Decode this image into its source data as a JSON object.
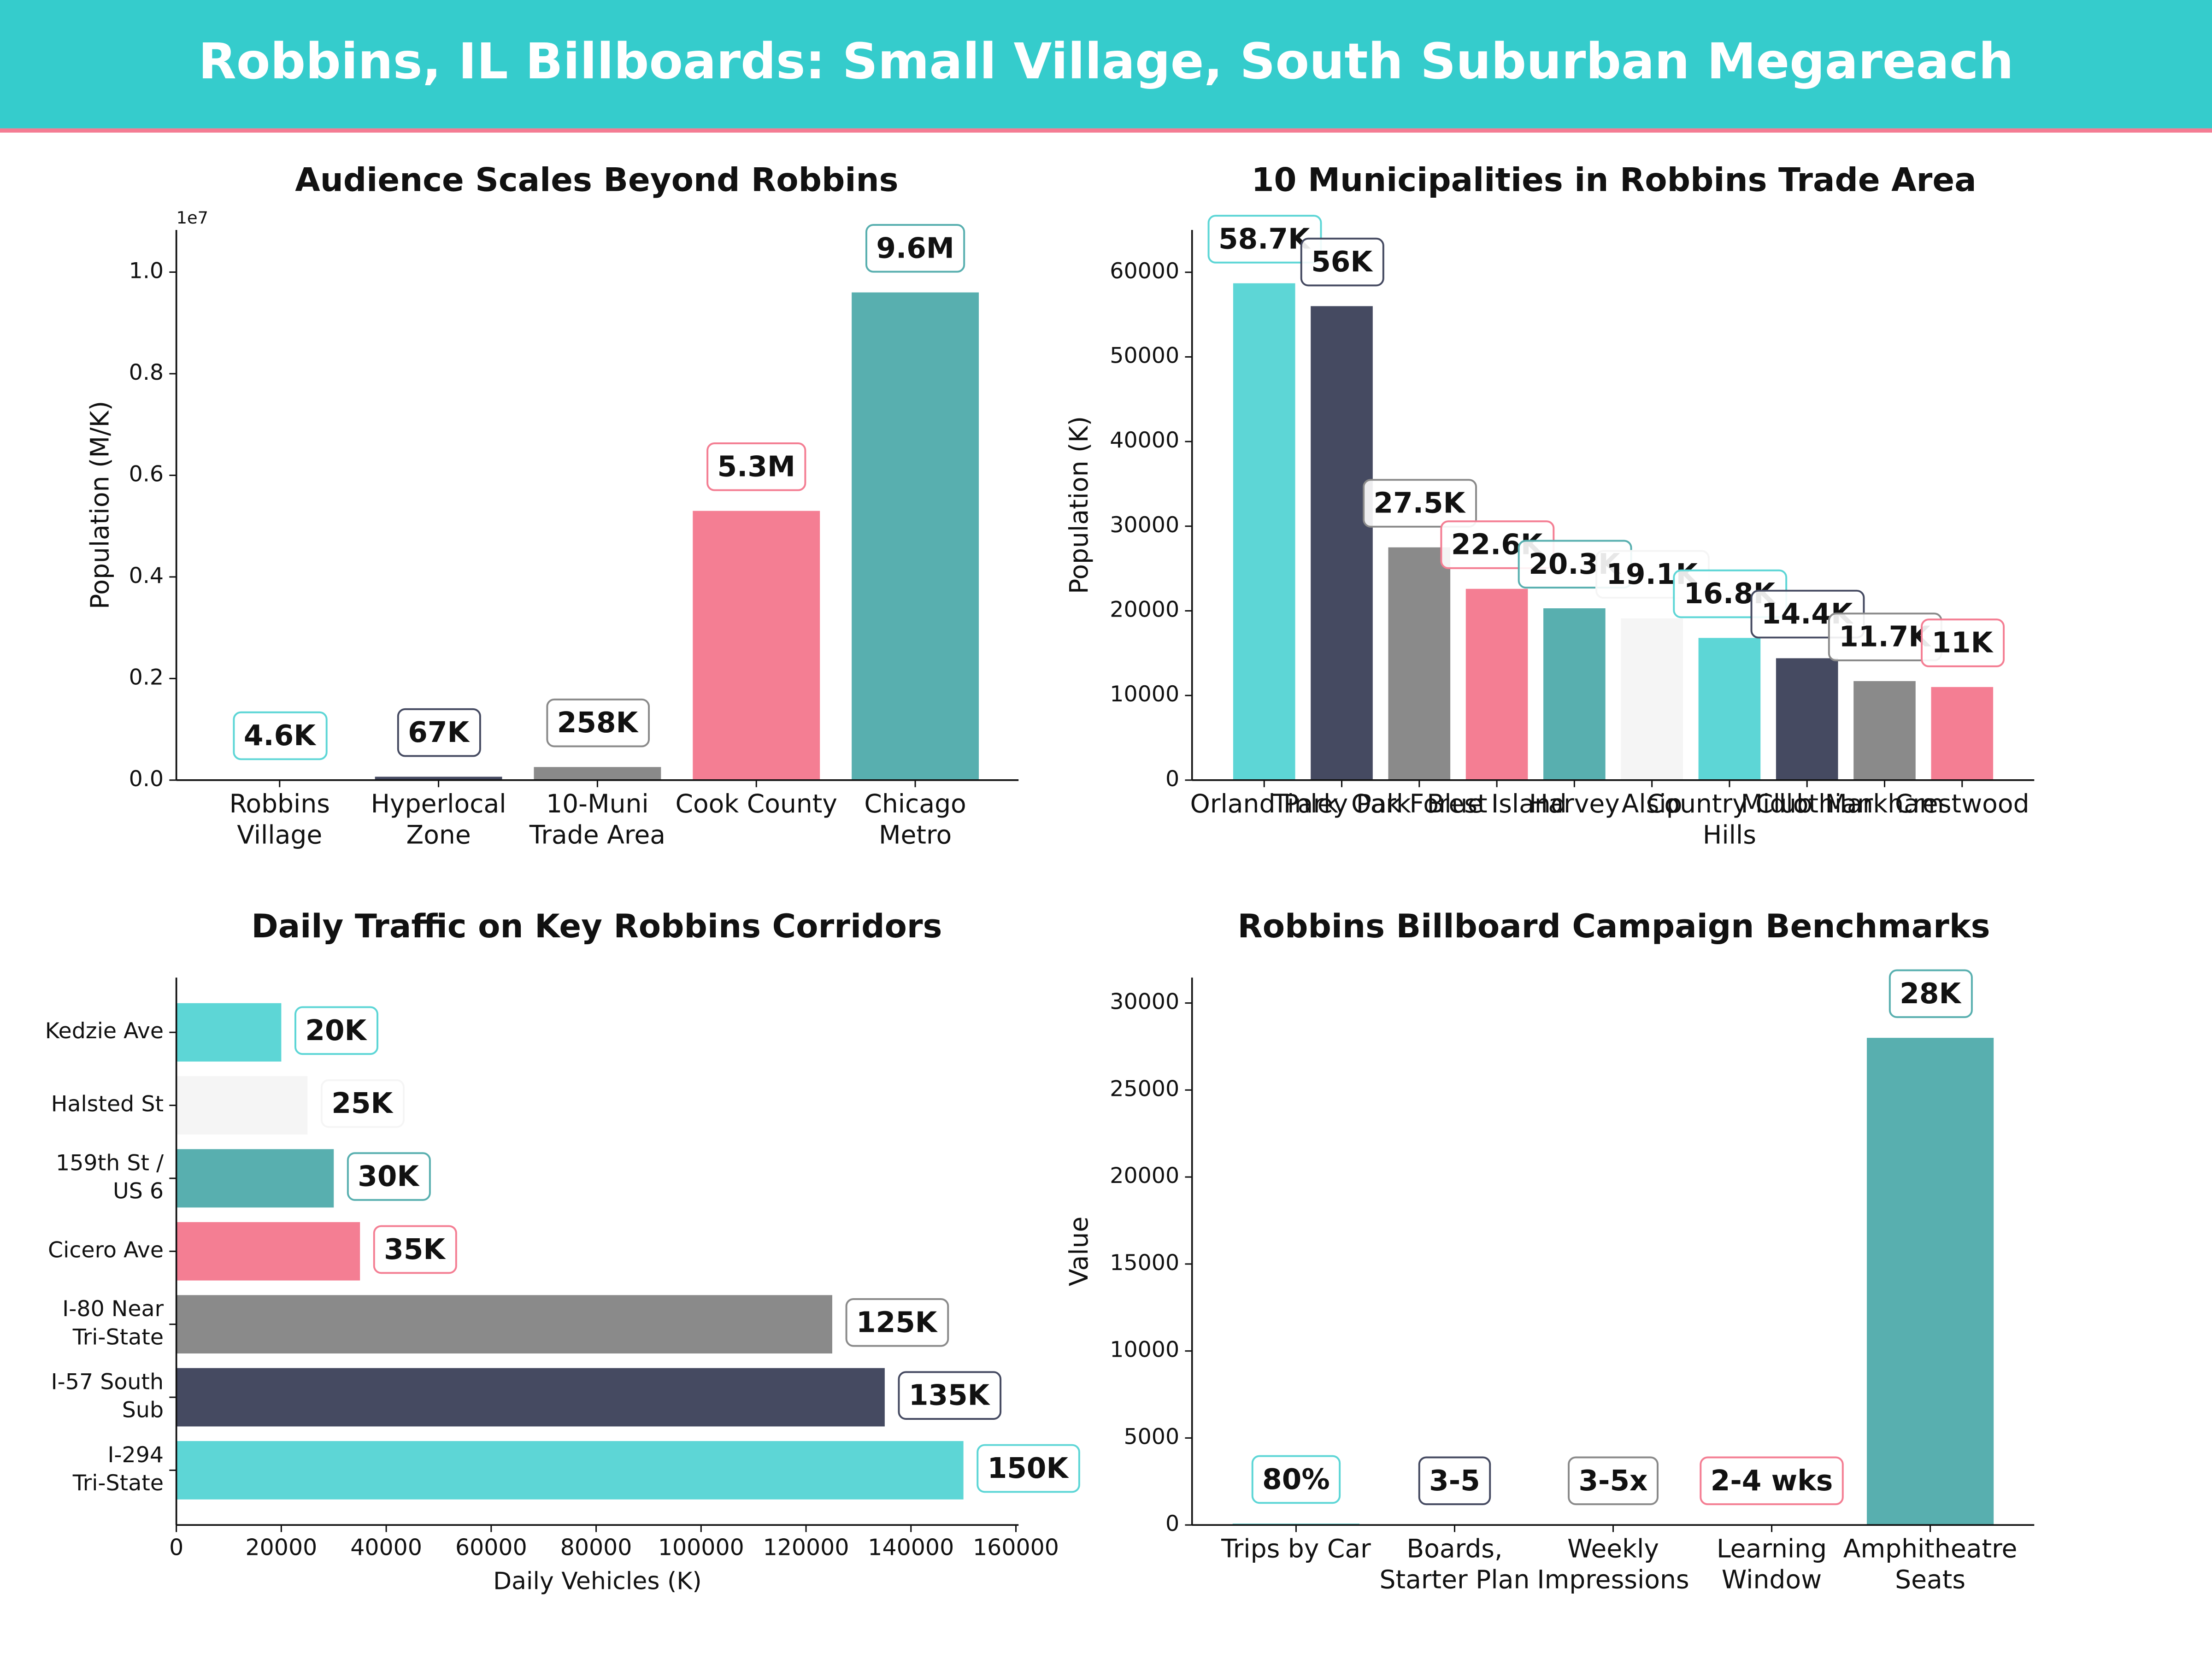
{
  "title": "Robbins, IL Billboards: Small Village, South Suburban Megareach",
  "chart_data": [
    {
      "type": "bar",
      "title": "Audience Scales Beyond Robbins",
      "ylabel": "Population (M/K)",
      "y_offset_label": "1e7",
      "categories": [
        "Robbins\nVillage",
        "Hyperlocal\nZone",
        "10-Muni\nTrade Area",
        "Cook County",
        "Chicago\nMetro"
      ],
      "values": [
        4600,
        67000,
        258000,
        5300000,
        9600000
      ],
      "value_labels": [
        "4.6K",
        "67K",
        "258K",
        "5.3M",
        "9.6M"
      ],
      "colors": [
        "#5DD6D6",
        "#454A61",
        "#8A8A8A",
        "#F47E93",
        "#58AFAF"
      ],
      "ylim": [
        0,
        10830000
      ],
      "yticks": [
        {
          "value": 0,
          "label": "0.0"
        },
        {
          "value": 2000000,
          "label": "0.2"
        },
        {
          "value": 4000000,
          "label": "0.4"
        },
        {
          "value": 6000000,
          "label": "0.6"
        },
        {
          "value": 8000000,
          "label": "0.8"
        },
        {
          "value": 10000000,
          "label": "1.0"
        }
      ]
    },
    {
      "type": "bar",
      "title": "10 Municipalities in Robbins Trade Area",
      "ylabel": "Population (K)",
      "categories": [
        "Orland Park",
        "Tinley Park",
        "Oak Forest",
        "Blue Island",
        "Harvey",
        "Alsip",
        "Country Club\nHills",
        "Midlothian",
        "Markham",
        "Crestwood"
      ],
      "values": [
        58700,
        56000,
        27500,
        22600,
        20300,
        19100,
        16800,
        14400,
        11700,
        11000
      ],
      "value_labels": [
        "58.7K",
        "56K",
        "27.5K",
        "22.6K",
        "20.3K",
        "19.1K",
        "16.8K",
        "14.4K",
        "11.7K",
        "11K"
      ],
      "colors": [
        "#5DD6D6",
        "#454A61",
        "#8A8A8A",
        "#F47E93",
        "#58AFAF",
        "#F5F5F5",
        "#5DD6D6",
        "#454A61",
        "#8A8A8A",
        "#F47E93"
      ],
      "ylim": [
        0,
        65000
      ],
      "yticks": [
        0,
        10000,
        20000,
        30000,
        40000,
        50000,
        60000
      ]
    },
    {
      "type": "barh",
      "title": "Daily Traffic on Key Robbins Corridors",
      "xlabel": "Daily Vehicles (K)",
      "categories": [
        "Kedzie Ave",
        "Halsted St",
        "159th St /\nUS 6",
        "Cicero Ave",
        "I-80 Near\nTri-State",
        "I-57 South\nSub",
        "I-294\nTri-State"
      ],
      "values": [
        20000,
        25000,
        30000,
        35000,
        125000,
        135000,
        150000
      ],
      "value_labels": [
        "20K",
        "25K",
        "30K",
        "35K",
        "125K",
        "135K",
        "150K"
      ],
      "colors": [
        "#5DD6D6",
        "#F5F5F5",
        "#58AFAF",
        "#F47E93",
        "#8A8A8A",
        "#454A61",
        "#5DD6D6"
      ],
      "xlim": [
        0,
        160500
      ],
      "xticks": [
        0,
        20000,
        40000,
        60000,
        80000,
        100000,
        120000,
        140000,
        160000
      ]
    },
    {
      "type": "bar",
      "title": "Robbins Billboard Campaign Benchmarks",
      "ylabel": "Value",
      "categories": [
        "Trips by Car",
        "Boards,\nStarter Plan",
        "Weekly\nImpressions",
        "Learning\nWindow",
        "Amphitheatre\nSeats"
      ],
      "values": [
        80,
        4,
        4,
        3,
        28000
      ],
      "value_labels": [
        "80%",
        "3-5",
        "3-5x",
        "2-4 wks",
        "28K"
      ],
      "colors": [
        "#5DD6D6",
        "#454A61",
        "#8A8A8A",
        "#F47E93",
        "#58AFAF"
      ],
      "ylim": [
        0,
        31460
      ],
      "yticks": [
        0,
        5000,
        10000,
        15000,
        20000,
        25000,
        30000
      ]
    }
  ]
}
